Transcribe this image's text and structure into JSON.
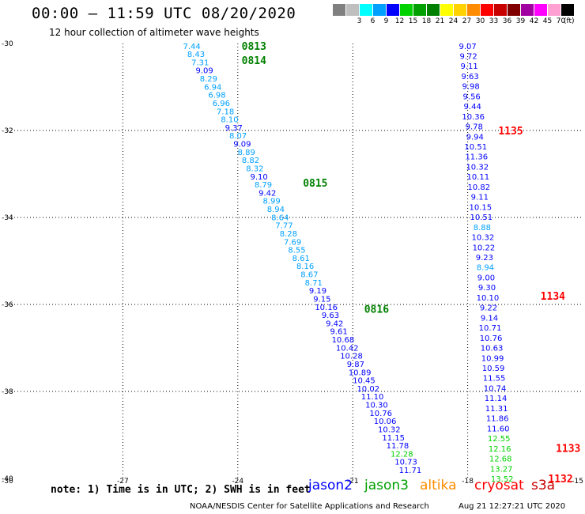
{
  "title": "00:00 – 11:59 UTC 08/20/2020",
  "subtitle": "12 hour collection of altimeter wave heights",
  "colorbar": {
    "unit": "(ft)",
    "entries": [
      {
        "label": "",
        "color": "#808080"
      },
      {
        "label": "3",
        "color": "#bfbfbf"
      },
      {
        "label": "6",
        "color": "#00ffff"
      },
      {
        "label": "9",
        "color": "#00a0ff"
      },
      {
        "label": "12",
        "color": "#0000ff"
      },
      {
        "label": "15",
        "color": "#00d200"
      },
      {
        "label": "18",
        "color": "#00a000"
      },
      {
        "label": "21",
        "color": "#008000"
      },
      {
        "label": "24",
        "color": "#ffff00"
      },
      {
        "label": "27",
        "color": "#ffd200"
      },
      {
        "label": "30",
        "color": "#ff8c00"
      },
      {
        "label": "33",
        "color": "#ff0000"
      },
      {
        "label": "36",
        "color": "#c80000"
      },
      {
        "label": "39",
        "color": "#800000"
      },
      {
        "label": "42",
        "color": "#a000a0"
      },
      {
        "label": "45",
        "color": "#ff00ff"
      },
      {
        "label": "70",
        "color": "#ffa0d2"
      },
      {
        "label": "",
        "color": "#000000"
      }
    ]
  },
  "note": "note: 1) Time is in UTC; 2) SWH is in feet",
  "legend": [
    {
      "label": "jason2",
      "color": "#0000ff"
    },
    {
      "label": "jason3",
      "color": "#00a000"
    },
    {
      "label": "altika",
      "color": "#ff8c00"
    },
    {
      "label": "cryosat",
      "color": "#ff0000"
    },
    {
      "label": "s3a",
      "color": "#c80000"
    }
  ],
  "credit": "NOAA/NESDIS Center for Satellite Applications and Research",
  "timestamp": "Aug 21 12:27:21 UTC 2020",
  "chart_data": {
    "type": "scatter",
    "title": "00:00 – 11:59 UTC 08/20/2020",
    "subtitle": "12 hour collection of altimeter wave heights",
    "xlim": [
      -30,
      -15
    ],
    "ylim": [
      -40,
      -30
    ],
    "x_ticks": [
      -30,
      -27,
      -24,
      -21,
      -18,
      -15
    ],
    "y_ticks": [
      -30,
      -32,
      -34,
      -36,
      -38,
      -40
    ],
    "grid": "dotted",
    "tracks": [
      {
        "labels": [
          {
            "text": "0813",
            "x": -23.9,
            "y": -30.05,
            "color": "#008000"
          },
          {
            "text": "0814",
            "x": -23.9,
            "y": -30.38,
            "color": "#008000"
          },
          {
            "text": "0815",
            "x": -22.3,
            "y": -33.2,
            "color": "#008000"
          },
          {
            "text": "0816",
            "x": -20.7,
            "y": -36.1,
            "color": "#008000"
          }
        ],
        "start": {
          "x": -25.2,
          "y": -30.05
        },
        "end": {
          "x": -19.5,
          "y": -39.8
        },
        "values": [
          "7.44",
          "8.43",
          "7.31",
          "9.09",
          "8.29",
          "6.94",
          "6.98",
          "6.96",
          "7.18",
          "8.10",
          "9.37",
          "8.07",
          "9.09",
          "8.89",
          "8.82",
          "8.32",
          "9.10",
          "8.79",
          "9.42",
          "8.99",
          "8.94",
          "8.64",
          "7.77",
          "8.28",
          "7.69",
          "8.55",
          "8.61",
          "8.16",
          "8.67",
          "8.71",
          "9.19",
          "9.15",
          "10.16",
          "9.63",
          "9.42",
          "9.61",
          "10.68",
          "10.42",
          "10.28",
          "9.87",
          "10.89",
          "10.45",
          "10.02",
          "11.10",
          "10.30",
          "10.76",
          "10.06",
          "10.32",
          "11.15",
          "11.78",
          "12.28",
          "10.73",
          "11.71"
        ]
      },
      {
        "labels": [
          {
            "text": "1135",
            "x": -17.2,
            "y": -32.0,
            "color": "#ff0000"
          },
          {
            "text": "1134",
            "x": -16.1,
            "y": -35.8,
            "color": "#ff0000"
          },
          {
            "text": "1133",
            "x": -15.7,
            "y": -39.3,
            "color": "#ff0000"
          },
          {
            "text": "1132",
            "x": -15.9,
            "y": -40.0,
            "color": "#ff0000"
          }
        ],
        "start": {
          "x": -18.0,
          "y": -30.05
        },
        "end": {
          "x": -17.1,
          "y": -40.0
        },
        "values": [
          "9.07",
          "9.72",
          "9.11",
          "9.63",
          "9.98",
          "9.56",
          "9.44",
          "10.36",
          "9.78",
          "9.94",
          "10.51",
          "11.36",
          "10.32",
          "10.11",
          "10.82",
          "9.11",
          "10.15",
          "10.51",
          "8.88",
          "10.32",
          "10.22",
          "9.23",
          "8.94",
          "9.00",
          "9.30",
          "10.10",
          "9.22",
          "9.14",
          "10.71",
          "10.76",
          "10.63",
          "10.99",
          "10.59",
          "11.55",
          "10.74",
          "11.14",
          "11.31",
          "11.86",
          "11.60",
          "12.55",
          "12.16",
          "12.68",
          "13.27",
          "13.52"
        ]
      }
    ]
  }
}
